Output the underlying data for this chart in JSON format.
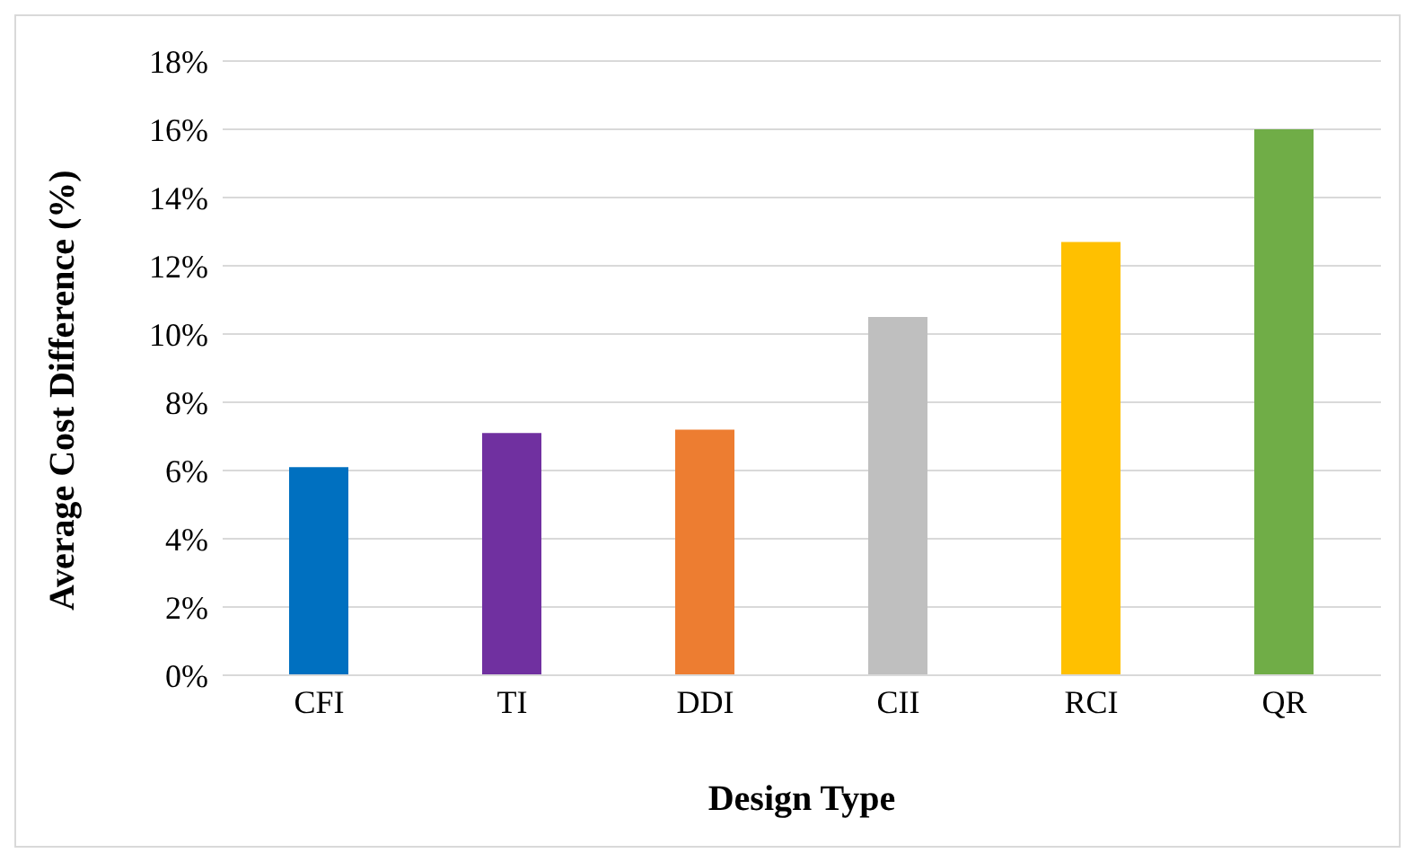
{
  "chart_data": {
    "type": "bar",
    "xlabel": "Design Type",
    "ylabel": "Average Cost  Difference (%)",
    "categories": [
      "CFI",
      "TI",
      "DDI",
      "CII",
      "RCI",
      "QR"
    ],
    "values": [
      6.1,
      7.1,
      7.2,
      10.5,
      12.7,
      16.0
    ],
    "colors": [
      "#0070c0",
      "#7030a0",
      "#ed7d31",
      "#bfbfbf",
      "#ffc000",
      "#70ad47"
    ],
    "ylim": [
      0,
      18
    ],
    "yticks": [
      {
        "value": 0,
        "label": "0%"
      },
      {
        "value": 2,
        "label": "2%"
      },
      {
        "value": 4,
        "label": "4%"
      },
      {
        "value": 6,
        "label": "6%"
      },
      {
        "value": 8,
        "label": "8%"
      },
      {
        "value": 10,
        "label": "10%"
      },
      {
        "value": 12,
        "label": "12%"
      },
      {
        "value": 14,
        "label": "14%"
      },
      {
        "value": 16,
        "label": "16%"
      },
      {
        "value": 18,
        "label": "18%"
      }
    ],
    "grid": "y",
    "legend": false
  }
}
